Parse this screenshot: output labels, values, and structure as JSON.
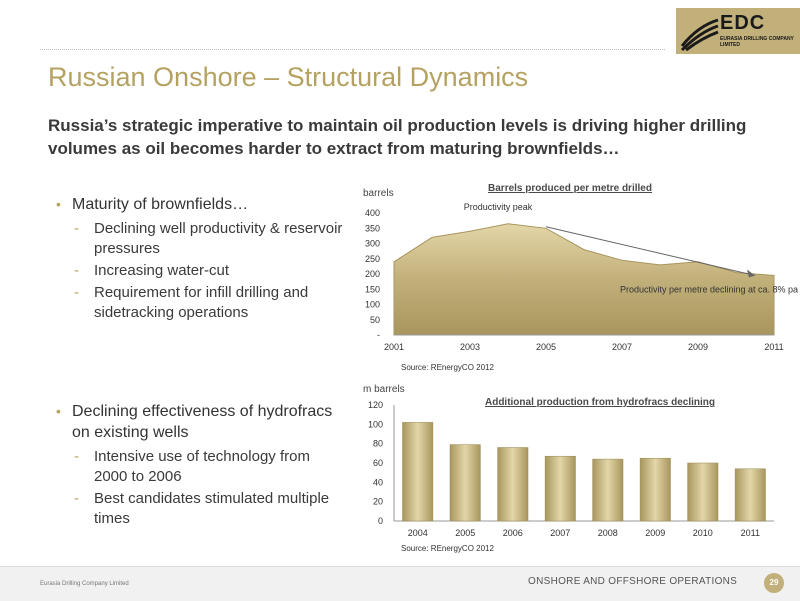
{
  "header": {
    "title": "Russian Onshore – Structural Dynamics",
    "subtitle": "Russia’s strategic imperative to maintain oil production levels is driving higher drilling volumes as oil becomes harder to extract from maturing brownfields…"
  },
  "logo": {
    "name": "EDC",
    "subtitle": "EURASIA DRILLING COMPANY LIMITED"
  },
  "bullets": [
    {
      "label": "Maturity of brownfields…",
      "items": [
        "Declining well productivity & reservoir pressures",
        "Increasing water-cut",
        "Requirement for infill drilling and sidetracking operations"
      ]
    },
    {
      "label": "Declining effectiveness of hydrofracs on existing wells",
      "items": [
        "Intensive use of technology from 2000 to 2006",
        "Best candidates stimulated multiple times"
      ]
    }
  ],
  "chart_data": [
    {
      "type": "area",
      "title": "Barrels produced per metre drilled",
      "ylabel": "barrels",
      "x": [
        2001,
        2002,
        2003,
        2004,
        2005,
        2006,
        2007,
        2008,
        2009,
        2010,
        2011
      ],
      "values": [
        240,
        320,
        340,
        365,
        350,
        280,
        245,
        230,
        240,
        205,
        195
      ],
      "xticks": [
        "2001",
        "2003",
        "2005",
        "2007",
        "2009",
        "2011"
      ],
      "yticks": [
        "-",
        "50",
        "100",
        "150",
        "200",
        "250",
        "300",
        "350",
        "400"
      ],
      "ylim": [
        0,
        400
      ],
      "annotations": [
        "Productivity peak",
        "Productivity per metre declining at ca. 8% pa"
      ],
      "source": "Source: REnergyCO 2012",
      "color": "#c2b07a"
    },
    {
      "type": "bar",
      "title": "Additional production from hydrofracs declining",
      "ylabel": "m barrels",
      "categories": [
        "2004",
        "2005",
        "2006",
        "2007",
        "2008",
        "2009",
        "2010",
        "2011"
      ],
      "values": [
        102,
        79,
        76,
        67,
        64,
        65,
        60,
        54
      ],
      "yticks": [
        "0",
        "20",
        "40",
        "60",
        "80",
        "100",
        "120"
      ],
      "ylim": [
        0,
        120
      ],
      "source": "Source: REnergyCO 2012",
      "color": "#c2b07a"
    }
  ],
  "footer": {
    "company": "Eurasia Drilling Company Limited",
    "section": "ONSHORE AND OFFSHORE OPERATIONS",
    "page": "29"
  }
}
